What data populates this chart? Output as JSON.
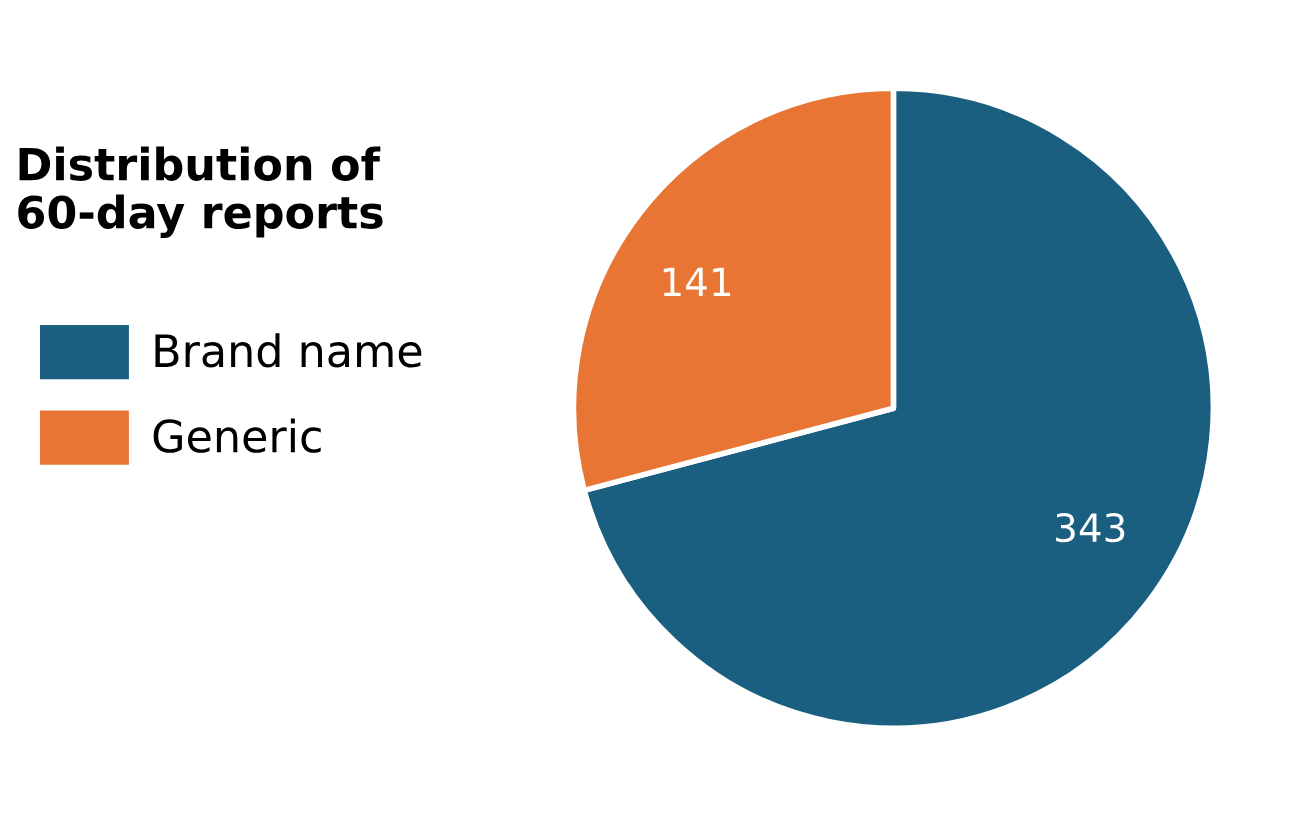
{
  "chart_data": {
    "type": "pie",
    "title": "Distribution of\n60-day reports",
    "categories": [
      "Brand name",
      "Generic"
    ],
    "values": [
      343,
      141
    ],
    "colors": [
      "#1a5e80",
      "#e87533"
    ],
    "data_labels": true,
    "legend": "left"
  }
}
